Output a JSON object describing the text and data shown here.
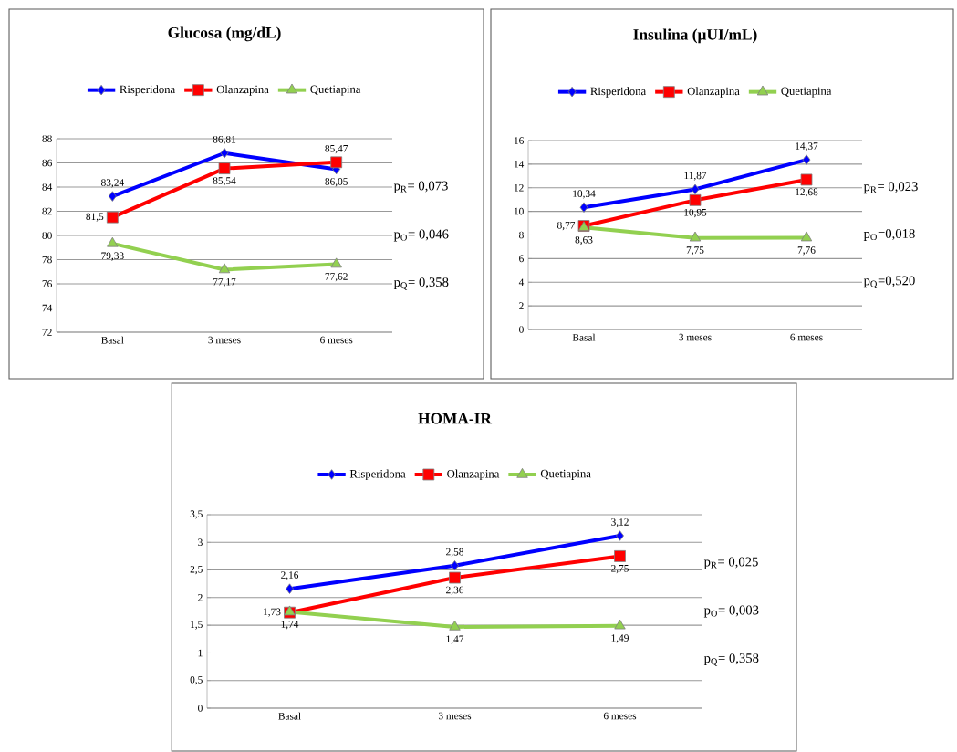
{
  "chart_data": [
    {
      "type": "line",
      "title": "Glucosa (mg/dL)",
      "categories": [
        "Basal",
        "3 meses",
        "6 meses"
      ],
      "series": [
        {
          "name": "Risperidona",
          "color": "#0000ff",
          "marker": "diamond",
          "values": [
            83.24,
            86.81,
            85.47
          ],
          "value_labels": [
            "83,24",
            "86,81",
            "85,47"
          ]
        },
        {
          "name": "Olanzapina",
          "color": "#ff0000",
          "marker": "square",
          "values": [
            81.5,
            85.54,
            86.05
          ],
          "value_labels": [
            "81,5",
            "85,54",
            "86,05"
          ]
        },
        {
          "name": "Quetiapina",
          "color": "#92d050",
          "marker": "triangle",
          "values": [
            79.33,
            77.17,
            77.62
          ],
          "value_labels": [
            "79,33",
            "77,17",
            "77,62"
          ]
        }
      ],
      "ylim": [
        72,
        88
      ],
      "yticks": [
        72,
        74,
        76,
        78,
        80,
        82,
        84,
        86,
        88
      ],
      "grid": "y",
      "legend": "top",
      "annotations": [
        "p$_{R}$= 0,073",
        "p$_{O}$= 0,046",
        "p$_{Q}$= 0,358"
      ]
    },
    {
      "type": "line",
      "title": "Insulina (µUI/mL)",
      "categories": [
        "Basal",
        "3 meses",
        "6 meses"
      ],
      "series": [
        {
          "name": "Risperidona",
          "color": "#0000ff",
          "marker": "diamond",
          "values": [
            10.34,
            11.87,
            14.37
          ],
          "value_labels": [
            "10,34",
            "11,87",
            "14,37"
          ]
        },
        {
          "name": "Olanzapina",
          "color": "#ff0000",
          "marker": "square",
          "values": [
            8.77,
            10.95,
            12.68
          ],
          "value_labels": [
            "8,77",
            "10,95",
            "12,68"
          ]
        },
        {
          "name": "Quetiapina",
          "color": "#92d050",
          "marker": "triangle",
          "values": [
            8.63,
            7.75,
            7.76
          ],
          "value_labels": [
            "8,63",
            "7,75",
            "7,76"
          ]
        }
      ],
      "ylim": [
        0,
        16
      ],
      "yticks": [
        0,
        2,
        4,
        6,
        8,
        10,
        12,
        14,
        16
      ],
      "grid": "y",
      "legend": "top",
      "annotations": [
        "p$_{R}$= 0,023",
        "p$_{O}$=0,018",
        "p$_{Q}$=0,520"
      ]
    },
    {
      "type": "line",
      "title": "HOMA-IR",
      "categories": [
        "Basal",
        "3 meses",
        "6 meses"
      ],
      "series": [
        {
          "name": "Risperidona",
          "color": "#0000ff",
          "marker": "diamond",
          "values": [
            2.16,
            2.58,
            3.12
          ],
          "value_labels": [
            "2,16",
            "2,58",
            "3,12"
          ]
        },
        {
          "name": "Olanzapina",
          "color": "#ff0000",
          "marker": "square",
          "values": [
            1.73,
            2.36,
            2.75
          ],
          "value_labels": [
            "1,73",
            "2,36",
            "2,75"
          ]
        },
        {
          "name": "Quetiapina",
          "color": "#92d050",
          "marker": "triangle",
          "values": [
            1.74,
            1.47,
            1.49
          ],
          "value_labels": [
            "1,74",
            "1,47",
            "1,49"
          ]
        }
      ],
      "ylim": [
        0,
        3.5
      ],
      "yticks": [
        0,
        {
          "value": 0.5,
          "label": "0,5"
        },
        1,
        {
          "value": 1.5,
          "label": "1,5"
        },
        2,
        {
          "value": 2.5,
          "label": "2,5"
        },
        3,
        {
          "value": 3.5,
          "label": "3,5"
        }
      ],
      "grid": "y",
      "legend": "top",
      "annotations": [
        "p$_{R}$= 0,025",
        "p$_{O}$= 0,003",
        "p$_{Q}$= 0,358"
      ]
    }
  ]
}
